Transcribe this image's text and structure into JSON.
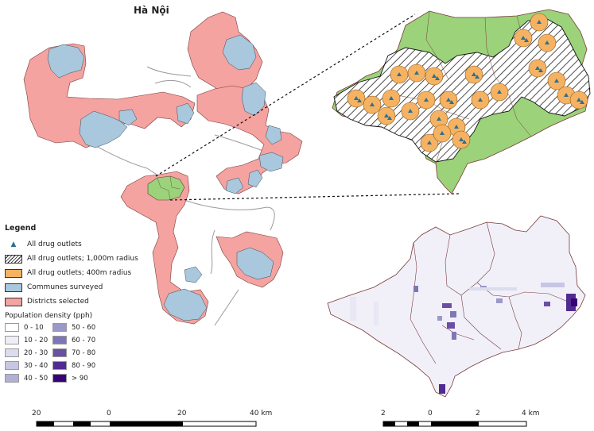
{
  "map_title": "Hà Nội",
  "legend": {
    "heading": "Legend",
    "items": [
      {
        "label": "All drug outlets",
        "symbol": "triangle",
        "color": "#2e6f8e"
      },
      {
        "label": "All drug outlets; 1,000m radius",
        "symbol": "hatch"
      },
      {
        "label": "All drug outlets; 400m radius",
        "symbol": "fill",
        "color": "#f5b263"
      },
      {
        "label": "Communes surveyed",
        "symbol": "fill",
        "color": "#a9c7dd"
      },
      {
        "label": "Districts selected",
        "symbol": "fill",
        "color": "#f4a3a0"
      }
    ],
    "population_heading": "Population density (pph)",
    "population_classes": [
      {
        "label": "0 - 10",
        "color": "#ffffff"
      },
      {
        "label": "10 - 20",
        "color": "#eeeef7"
      },
      {
        "label": "20 - 30",
        "color": "#dcdcee"
      },
      {
        "label": "30 - 40",
        "color": "#c7c6e3"
      },
      {
        "label": "40 - 50",
        "color": "#b1b0d7"
      },
      {
        "label": "50 - 60",
        "color": "#9b98ca"
      },
      {
        "label": "60 - 70",
        "color": "#7e76b8"
      },
      {
        "label": "70 - 80",
        "color": "#6a4fa3"
      },
      {
        "label": "80 - 90",
        "color": "#522b90"
      },
      {
        "label": "> 90",
        "color": "#3a007a"
      }
    ]
  },
  "scalebar_left": {
    "labels": [
      "20",
      "0",
      "20",
      "40 km"
    ]
  },
  "scalebar_right": {
    "labels": [
      "2",
      "0",
      "2",
      "4 km"
    ]
  },
  "colors": {
    "district": "#f4a3a0",
    "commune": "#a9c7dd",
    "green": "#9bd27a",
    "buffer400": "#f5b263",
    "outlet": "#2e6f8e",
    "boundary": "#8b3a3a"
  }
}
